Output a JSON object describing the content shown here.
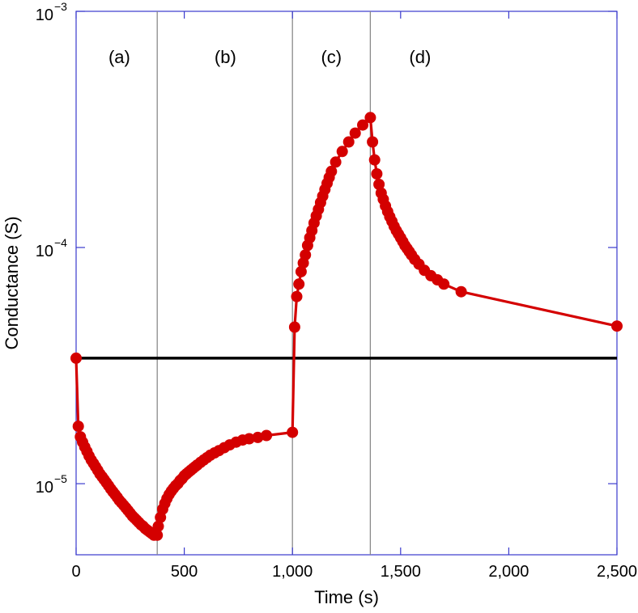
{
  "chart_data": {
    "type": "line",
    "title": "",
    "xlabel": "Time (s)",
    "ylabel": "Conductance (S)",
    "xlim": [
      0,
      2500
    ],
    "ylim": [
      5e-06,
      0.001
    ],
    "y_scale": "log",
    "grid": false,
    "x_ticks": [
      0,
      500,
      1000,
      1500,
      2000,
      2500
    ],
    "x_tick_labels": [
      "0",
      "500",
      "1,000",
      "1,500",
      "2,000",
      "2,500"
    ],
    "y_ticks": [
      1e-05,
      0.0001,
      0.001
    ],
    "y_tick_labels": [
      {
        "base": "10",
        "exp": "−5"
      },
      {
        "base": "10",
        "exp": "−4"
      },
      {
        "base": "10",
        "exp": "−3"
      }
    ],
    "region_boundaries": [
      375,
      1000,
      1360
    ],
    "regions": [
      {
        "label": "(a)",
        "x": 200
      },
      {
        "label": "(b)",
        "x": 690
      },
      {
        "label": "(c)",
        "x": 1180
      },
      {
        "label": "(d)",
        "x": 1590
      }
    ],
    "reference_line": {
      "y": 3.4e-05,
      "color": "#000000"
    },
    "series": [
      {
        "color": "#d40000",
        "x": [
          0,
          10,
          20,
          30,
          40,
          50,
          60,
          70,
          80,
          90,
          100,
          110,
          120,
          130,
          140,
          150,
          160,
          170,
          180,
          190,
          200,
          210,
          220,
          230,
          240,
          250,
          260,
          270,
          280,
          290,
          300,
          310,
          320,
          330,
          340,
          350,
          360,
          375,
          380,
          390,
          400,
          410,
          420,
          430,
          440,
          450,
          460,
          470,
          480,
          490,
          500,
          510,
          520,
          530,
          540,
          550,
          560,
          575,
          590,
          605,
          620,
          640,
          660,
          685,
          710,
          740,
          770,
          800,
          840,
          880,
          1000,
          1010,
          1020,
          1030,
          1040,
          1050,
          1060,
          1070,
          1080,
          1090,
          1100,
          1110,
          1120,
          1130,
          1140,
          1150,
          1160,
          1170,
          1180,
          1200,
          1230,
          1260,
          1290,
          1325,
          1360,
          1370,
          1380,
          1390,
          1400,
          1410,
          1420,
          1430,
          1440,
          1450,
          1460,
          1470,
          1480,
          1490,
          1500,
          1510,
          1520,
          1530,
          1540,
          1550,
          1565,
          1585,
          1610,
          1640,
          1670,
          1700,
          1780,
          2500
        ],
        "y": [
          3.4e-05,
          1.75e-05,
          1.58e-05,
          1.5e-05,
          1.43e-05,
          1.37e-05,
          1.31e-05,
          1.26e-05,
          1.22e-05,
          1.18e-05,
          1.14e-05,
          1.1e-05,
          1.07e-05,
          1.04e-05,
          1.01e-05,
          9.8e-06,
          9.5e-06,
          9.25e-06,
          9e-06,
          8.75e-06,
          8.5e-06,
          8.3e-06,
          8.1e-06,
          7.9e-06,
          7.7e-06,
          7.5e-06,
          7.3e-06,
          7.15e-06,
          7e-06,
          6.85e-06,
          6.7e-06,
          6.6e-06,
          6.45e-06,
          6.35e-06,
          6.25e-06,
          6.15e-06,
          6.05e-06,
          6.05e-06,
          6.6e-06,
          7.2e-06,
          7.8e-06,
          8.25e-06,
          8.65e-06,
          9e-06,
          9.3e-06,
          9.55e-06,
          9.8e-06,
          1e-05,
          1.03e-05,
          1.05e-05,
          1.08e-05,
          1.1e-05,
          1.12e-05,
          1.14e-05,
          1.16e-05,
          1.18e-05,
          1.2e-05,
          1.23e-05,
          1.26e-05,
          1.29e-05,
          1.32e-05,
          1.35e-05,
          1.38e-05,
          1.42e-05,
          1.46e-05,
          1.5e-05,
          1.53e-05,
          1.55e-05,
          1.57e-05,
          1.6e-05,
          1.65e-05,
          4.6e-05,
          6.2e-05,
          7e-05,
          7.9e-05,
          8.6e-05,
          9.3e-05,
          0.000102,
          0.00011,
          0.000118,
          0.000127,
          0.000136,
          0.000145,
          0.000155,
          0.000165,
          0.000176,
          0.000187,
          0.000198,
          0.00021,
          0.00023,
          0.000255,
          0.00028,
          0.000305,
          0.00033,
          0.000355,
          0.00028,
          0.000235,
          0.000205,
          0.000185,
          0.00017,
          0.00016,
          0.00015,
          0.000142,
          0.000135,
          0.000129,
          0.000123,
          0.000118,
          0.000114,
          0.00011,
          0.000106,
          0.000102,
          9.9e-05,
          9.6e-05,
          9.3e-05,
          8.9e-05,
          8.5e-05,
          8e-05,
          7.6e-05,
          7.3e-05,
          7e-05,
          6.5e-05,
          4.65e-05
        ]
      }
    ]
  }
}
